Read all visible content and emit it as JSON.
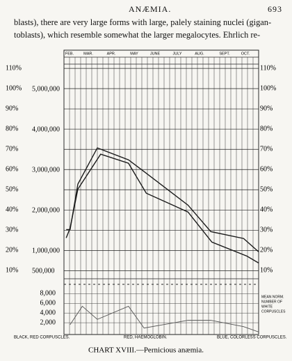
{
  "header": {
    "title": "ANÆMIA.",
    "page": "693"
  },
  "text": [
    "blasts), there are very large forms with large, palely staining nuclei (gigan-",
    "toblasts), which resemble somewhat the larger megalocytes.  Ehrlich re-"
  ],
  "legend": [
    "BLACK, RED CORPUSCLES.",
    "RED, HAEMOGLOBIN.",
    "BLUE, COLORLESS CORPUSCLES."
  ],
  "note": [
    "MEAN NORM.",
    "NUMBER OF",
    "WHITE",
    "CORPUSCLES"
  ],
  "caption": "CHART XVIII.—Pernicious anæmia.",
  "chart_data": [
    {
      "type": "line",
      "categories": [
        "FEB.",
        "MAR.",
        "APR.",
        "MAY",
        "JUNE",
        "JULY",
        "AUG.",
        "SEPT.",
        "OCT."
      ],
      "xlim": [
        0,
        35
      ],
      "ylim": [
        6,
        119
      ],
      "yticks": [
        {
          "value": 10,
          "label": "10%"
        },
        {
          "value": 20,
          "label": "20%"
        },
        {
          "value": 30,
          "label": "30%"
        },
        {
          "value": 40,
          "label": "40%"
        },
        {
          "value": 50,
          "label": "50%"
        },
        {
          "value": 60,
          "label": "60%"
        },
        {
          "value": 70,
          "label": "70%"
        },
        {
          "value": 80,
          "label": "80%"
        },
        {
          "value": 90,
          "label": "90%"
        },
        {
          "value": 100,
          "label": "100%"
        },
        {
          "value": 110,
          "label": "110%"
        }
      ],
      "count_ticks": [
        {
          "value": 10,
          "label": "500,000"
        },
        {
          "value": 20,
          "label": "1,000,000"
        },
        {
          "value": 40,
          "label": "2,000,000"
        },
        {
          "value": 60,
          "label": "3,000,000"
        },
        {
          "value": 80,
          "label": "4,000,000"
        },
        {
          "value": 100,
          "label": "5,000,000"
        }
      ],
      "series": [
        {
          "color": "#1a1a1a",
          "x": [
            0.4,
            1.1,
            2.5,
            6,
            11.6,
            14.4,
            22.3,
            26.4,
            32.3,
            35
          ],
          "values": [
            30.3,
            30.3,
            52.8,
            70.7,
            64.8,
            59,
            42.4,
            29.3,
            25.9,
            19.3
          ]
        },
        {
          "color": "#1a1a1a",
          "x": [
            0.4,
            1.1,
            2.5,
            6.6,
            11.6,
            14.8,
            22.3,
            26.6,
            32.9,
            35
          ],
          "values": [
            26.2,
            31,
            50.3,
            67.6,
            63.1,
            48.3,
            39,
            24.1,
            17.2,
            13.8
          ]
        }
      ]
    },
    {
      "type": "line",
      "xlim": [
        0,
        35
      ],
      "ylim": [
        0,
        10500
      ],
      "yticks": [
        {
          "value": 2000,
          "label": "2,000"
        },
        {
          "value": 4000,
          "label": "4,000"
        },
        {
          "value": 6000,
          "label": "6,000"
        },
        {
          "value": 8000,
          "label": "8,000"
        }
      ],
      "series": [
        {
          "color": "#555555",
          "x": [
            1.1,
            3.3,
            6,
            11.6,
            14.4,
            22.3,
            26.4,
            32.3,
            35
          ],
          "values": [
            1600,
            5400,
            2700,
            5400,
            900,
            2500,
            2500,
            1200,
            100
          ]
        }
      ]
    }
  ]
}
